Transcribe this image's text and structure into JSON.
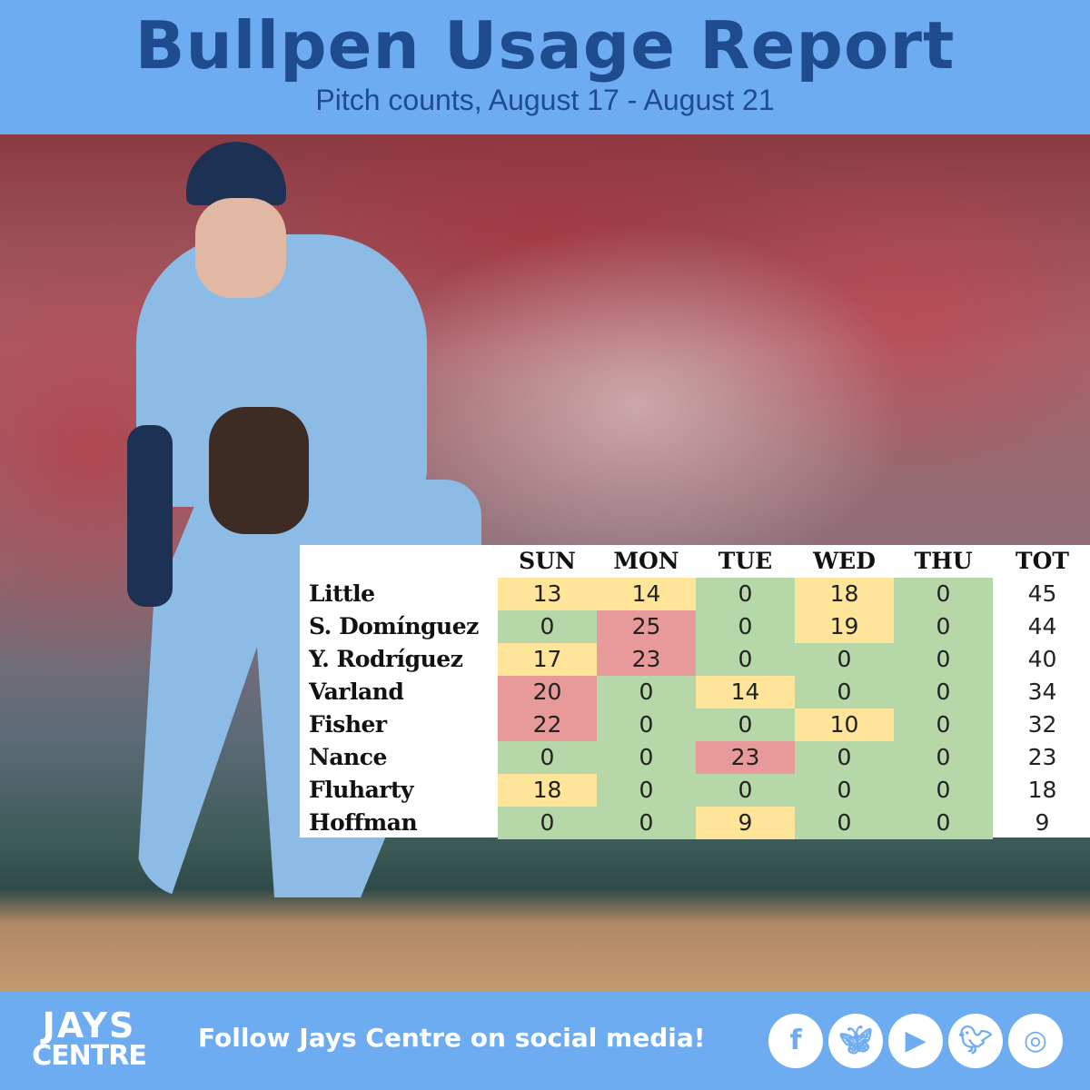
{
  "header": {
    "title": "Bullpen Usage Report",
    "subtitle": "Pitch counts, August 17 - August 21"
  },
  "chart_data": {
    "type": "heatmap",
    "columns": [
      "SUN",
      "MON",
      "TUE",
      "WED",
      "THU",
      "TOT"
    ],
    "rows": [
      {
        "name": "Little",
        "values": [
          13,
          14,
          0,
          18,
          0
        ],
        "total": 45
      },
      {
        "name": "S. Domínguez",
        "values": [
          0,
          25,
          0,
          19,
          0
        ],
        "total": 44
      },
      {
        "name": "Y. Rodríguez",
        "values": [
          17,
          23,
          0,
          0,
          0
        ],
        "total": 40
      },
      {
        "name": "Varland",
        "values": [
          20,
          0,
          14,
          0,
          0
        ],
        "total": 34
      },
      {
        "name": "Fisher",
        "values": [
          22,
          0,
          0,
          10,
          0
        ],
        "total": 32
      },
      {
        "name": "Nance",
        "values": [
          0,
          0,
          23,
          0,
          0
        ],
        "total": 23
      },
      {
        "name": "Fluharty",
        "values": [
          18,
          0,
          0,
          0,
          0
        ],
        "total": 18
      },
      {
        "name": "Hoffman",
        "values": [
          0,
          0,
          9,
          0,
          0
        ],
        "total": 9
      }
    ],
    "color_scale": {
      "zero": "#b6d7a8",
      "low": "#fee599",
      "high": "#e89a9a",
      "high_threshold": 20
    }
  },
  "footer": {
    "logo_line1": "JAYS",
    "logo_line2": "CENTRE",
    "follow_text": "Follow Jays Centre on social media!",
    "social_icons": [
      "facebook-icon",
      "bluesky-icon",
      "youtube-icon",
      "twitter-icon",
      "instagram-icon"
    ]
  },
  "colors": {
    "banner": "#6eacf2",
    "title": "#1f4c8f"
  }
}
